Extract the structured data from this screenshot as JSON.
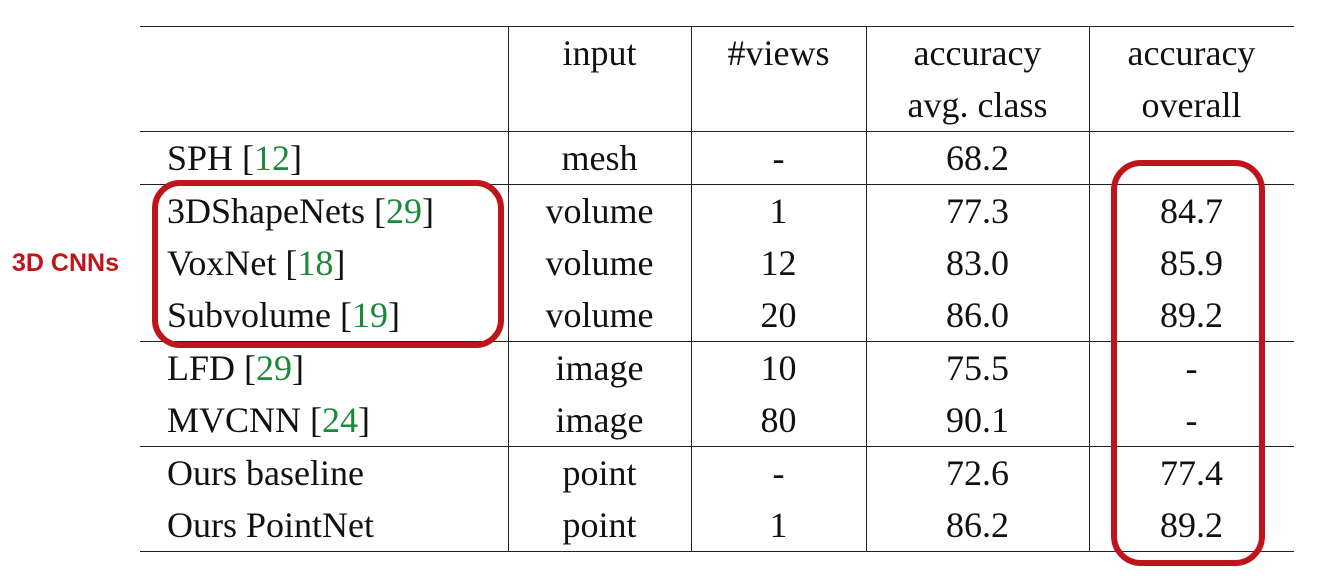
{
  "table": {
    "header": {
      "col0": "",
      "input": "input",
      "views": "#views",
      "acc_class_l1": "accuracy",
      "acc_class_l2": "avg. class",
      "acc_overall_l1": "accuracy",
      "acc_overall_l2": "overall"
    },
    "rows": [
      {
        "name": "SPH ",
        "ref": "12",
        "input": "mesh",
        "views": "-",
        "avg_class": "68.2",
        "overall": "",
        "avg_bold": false,
        "overall_bold": false
      },
      {
        "name": "3DShapeNets ",
        "ref": "29",
        "input": "volume",
        "views": "1",
        "avg_class": "77.3",
        "overall": "84.7",
        "avg_bold": false,
        "overall_bold": false
      },
      {
        "name": "VoxNet ",
        "ref": "18",
        "input": "volume",
        "views": "12",
        "avg_class": "83.0",
        "overall": "85.9",
        "avg_bold": false,
        "overall_bold": false
      },
      {
        "name": "Subvolume ",
        "ref": "19",
        "input": "volume",
        "views": "20",
        "avg_class": "86.0",
        "overall": "89.2",
        "avg_bold": false,
        "overall_bold": true
      },
      {
        "name": "LFD ",
        "ref": "29",
        "input": "image",
        "views": "10",
        "avg_class": "75.5",
        "overall": "-",
        "avg_bold": false,
        "overall_bold": false
      },
      {
        "name": "MVCNN ",
        "ref": "24",
        "input": "image",
        "views": "80",
        "avg_class": "90.1",
        "overall": "-",
        "avg_bold": true,
        "overall_bold": false
      },
      {
        "name": "Ours baseline",
        "ref": "",
        "input": "point",
        "views": "-",
        "avg_class": "72.6",
        "overall": "77.4",
        "avg_bold": false,
        "overall_bold": false
      },
      {
        "name": "Ours PointNet",
        "ref": "",
        "input": "point",
        "views": "1",
        "avg_class": "86.2",
        "overall": "89.2",
        "avg_bold": false,
        "overall_bold": true
      }
    ]
  },
  "annotations": {
    "cnn_label": "3D CNNs",
    "highlight_color": "#c0141c",
    "ref_color": "#1a8a3a"
  }
}
